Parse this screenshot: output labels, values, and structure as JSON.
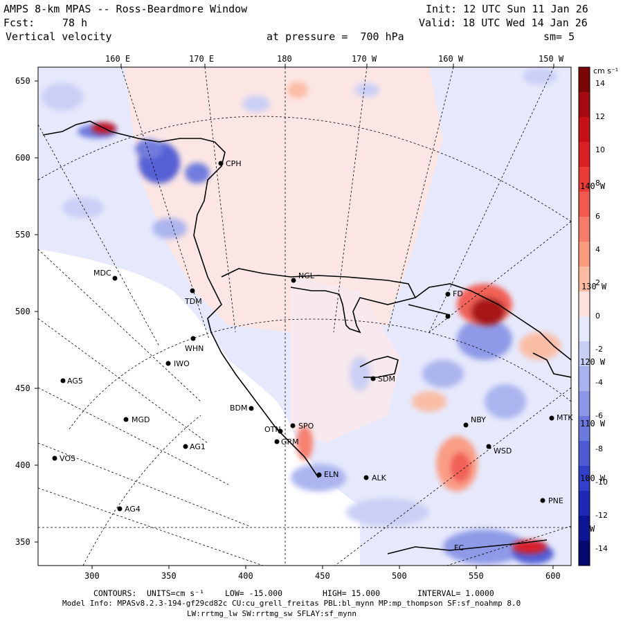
{
  "header": {
    "model_title": "AMPS 8-km MPAS -- Ross-Beardmore Window",
    "init": "Init: 12 UTC Sun 11 Jan 26",
    "fcst_label": "Fcst:",
    "fcst_value": "78 h",
    "valid": "Valid: 18 UTC Wed 14 Jan 26",
    "field": "Vertical velocity",
    "level": "at pressure =  700 hPa",
    "smoothing": "sm= 5"
  },
  "axes": {
    "top_ticks": [
      "160 E",
      "170 E",
      "180",
      "170 W",
      "160 W",
      "150 W"
    ],
    "left_ticks": [
      "650",
      "600",
      "550",
      "500",
      "450",
      "400",
      "350"
    ],
    "bottom_ticks": [
      "300",
      "350",
      "400",
      "450",
      "500",
      "550",
      "600"
    ],
    "right_lon_labels": [
      "140 W",
      "130 W",
      "120 W",
      "110 W",
      "100 W",
      "W"
    ]
  },
  "colorbar": {
    "unit_label": "cm s⁻¹",
    "labels": [
      "14",
      "12",
      "10",
      "8",
      "6",
      "4",
      "2",
      "0",
      "-2",
      "-4",
      "-6",
      "-8",
      "-10",
      "-12",
      "-14"
    ],
    "positive_colors": [
      "#fde0dd",
      "#fcbba1",
      "#fb9a7f",
      "#f87b6a",
      "#f25a50",
      "#ea3b36",
      "#dc1f22",
      "#c60f16",
      "#a50a10",
      "#7c0508"
    ],
    "negative_colors": [
      "#e6e9fb",
      "#c8cef5",
      "#a8b2ee",
      "#8a96e6",
      "#6b78dd",
      "#4d5ad4",
      "#3040c8",
      "#1a28b4",
      "#0c1596",
      "#050a70"
    ]
  },
  "stations": [
    {
      "name": "CPH"
    },
    {
      "name": "MDC"
    },
    {
      "name": "NGL"
    },
    {
      "name": "TDM"
    },
    {
      "name": "FD"
    },
    {
      "name": "WHN"
    },
    {
      "name": "IWO"
    },
    {
      "name": "AG5"
    },
    {
      "name": "SDM"
    },
    {
      "name": "BDM"
    },
    {
      "name": "MGD"
    },
    {
      "name": "OTN"
    },
    {
      "name": "SPO"
    },
    {
      "name": "GRM"
    },
    {
      "name": "NBY"
    },
    {
      "name": "MTK"
    },
    {
      "name": "AG1"
    },
    {
      "name": "WSD"
    },
    {
      "name": "VOS"
    },
    {
      "name": "ELN"
    },
    {
      "name": "ALK"
    },
    {
      "name": "AG4"
    },
    {
      "name": "PNE"
    },
    {
      "name": "FC"
    }
  ],
  "footer": {
    "contours_label": "CONTOURS:",
    "units": "UNITS=cm s⁻¹",
    "low": "LOW= -15.000",
    "high": "HIGH= 15.000",
    "interval": "INTERVAL= 1.0000",
    "model_info": "Model Info: MPASv8.2.3-194-gf29cd82c CU:cu_grell_freitas PBL:bl_mynn MP:mp_thompson SF:sf_noahmp 8.0",
    "physics": "LW:rrtmg_lw SW:rrtmg_sw SFLAY:sf_mynn"
  }
}
